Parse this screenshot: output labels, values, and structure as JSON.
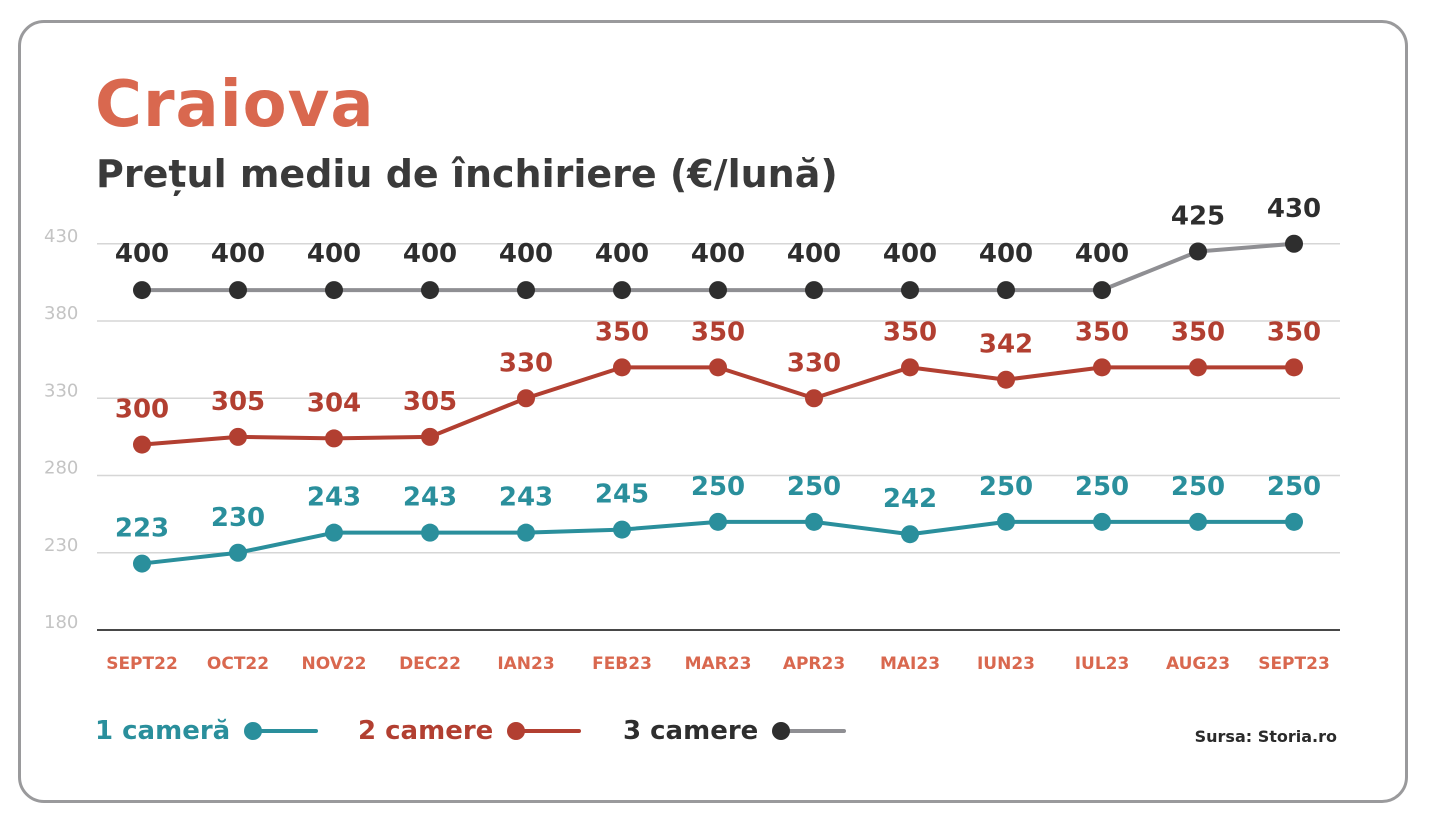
{
  "header": {
    "title": "Craiova",
    "subtitle": "Prețul mediu de închiriere (€/lună)"
  },
  "source": "Sursa: Storia.ro",
  "colors": {
    "title": "#d9684f",
    "month_labels": "#d9684f",
    "axis_ticks": "#c4c4c4",
    "series_1": "#2a8f9c",
    "series_2": "#b23f31",
    "series_3_line": "#8f8f93",
    "series_3_dot": "#2e2e2e"
  },
  "chart_data": {
    "type": "line",
    "categories": [
      "SEPT22",
      "OCT22",
      "NOV22",
      "DEC22",
      "IAN23",
      "FEB23",
      "MAR23",
      "APR23",
      "MAI23",
      "IUN23",
      "IUL23",
      "AUG23",
      "SEPT23"
    ],
    "yticks": [
      180,
      230,
      280,
      330,
      380,
      430
    ],
    "ylim": [
      180,
      430
    ],
    "grid": true,
    "legend_position": "bottom",
    "series": [
      {
        "name": "1 cameră",
        "key": "s1",
        "values": [
          223,
          230,
          243,
          243,
          243,
          245,
          250,
          250,
          242,
          250,
          250,
          250,
          250
        ]
      },
      {
        "name": "2 camere",
        "key": "s2",
        "values": [
          300,
          305,
          304,
          305,
          330,
          350,
          350,
          330,
          350,
          342,
          350,
          350,
          350
        ]
      },
      {
        "name": "3 camere",
        "key": "s3",
        "values": [
          400,
          400,
          400,
          400,
          400,
          400,
          400,
          400,
          400,
          400,
          400,
          425,
          430
        ]
      }
    ]
  }
}
